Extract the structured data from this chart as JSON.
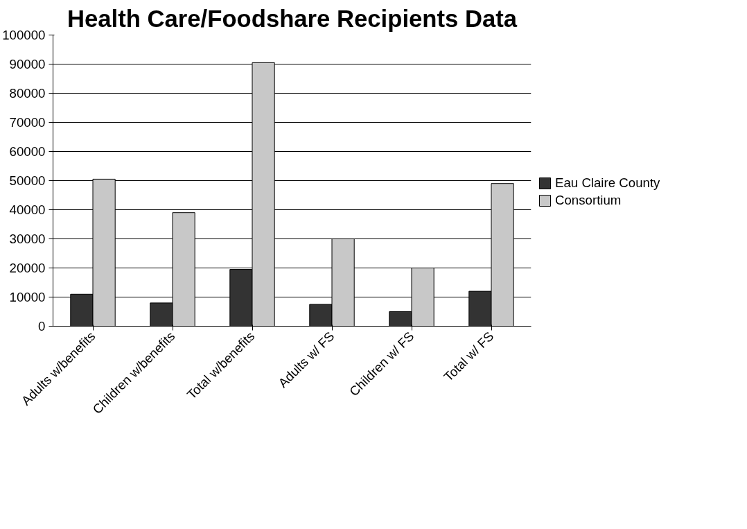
{
  "chart_data": {
    "type": "bar",
    "title": "Health Care/Foodshare Recipients Data",
    "categories": [
      "Adults w/benefits",
      "Children w/benefits",
      "Total w/benefits",
      "Adults w/ FS",
      "Children w/ FS",
      "Total w/ FS"
    ],
    "series": [
      {
        "name": "Eau Claire County",
        "color": "#333333",
        "values": [
          11000,
          8000,
          19500,
          7500,
          5000,
          12000
        ]
      },
      {
        "name": "Consortium",
        "color": "#c8c8c8",
        "values": [
          50500,
          39000,
          90500,
          30000,
          20000,
          49000
        ]
      }
    ],
    "ylim": [
      0,
      100000
    ],
    "yticks": [
      0,
      10000,
      20000,
      30000,
      40000,
      50000,
      60000,
      70000,
      80000,
      90000,
      100000
    ],
    "grid": "y",
    "legend": "right"
  }
}
